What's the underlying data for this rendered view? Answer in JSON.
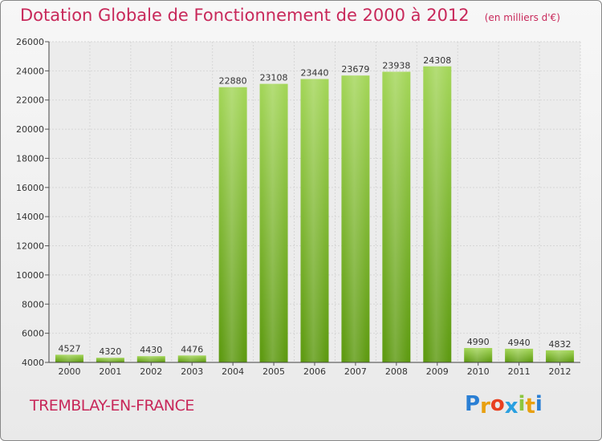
{
  "chart_title": "Dotation Globale de Fonctionnement de 2000 à 2012",
  "chart_unit": "(en milliers d'€)",
  "place_name": "TREMBLAY-EN-FRANCE",
  "brand": {
    "letters": [
      "P",
      "r",
      "o",
      "x",
      "i",
      "t",
      "i"
    ],
    "colors": [
      "#2a7fd4",
      "#e8a010",
      "#e84020",
      "#2aa0e0",
      "#8cc63f",
      "#e8a010",
      "#2a7fd4"
    ]
  },
  "colors": {
    "bar_light": "#a4d65a",
    "bar_dark": "#5e9a12",
    "title": "#c8285a",
    "grid": "#d6d6d6"
  },
  "chart_data": {
    "type": "bar",
    "title": "Dotation Globale de Fonctionnement de 2000 à 2012",
    "unit": "(en milliers d'€)",
    "categories": [
      "2000",
      "2001",
      "2002",
      "2003",
      "2004",
      "2005",
      "2006",
      "2007",
      "2008",
      "2009",
      "2010",
      "2011",
      "2012"
    ],
    "values": [
      4527,
      4320,
      4430,
      4476,
      22880,
      23108,
      23440,
      23679,
      23938,
      24308,
      4990,
      4940,
      4832
    ],
    "ylim": [
      4000,
      26000
    ],
    "yticks": [
      4000,
      6000,
      8000,
      10000,
      12000,
      14000,
      16000,
      18000,
      20000,
      22000,
      24000,
      26000
    ],
    "grid": true,
    "legend": "none"
  }
}
